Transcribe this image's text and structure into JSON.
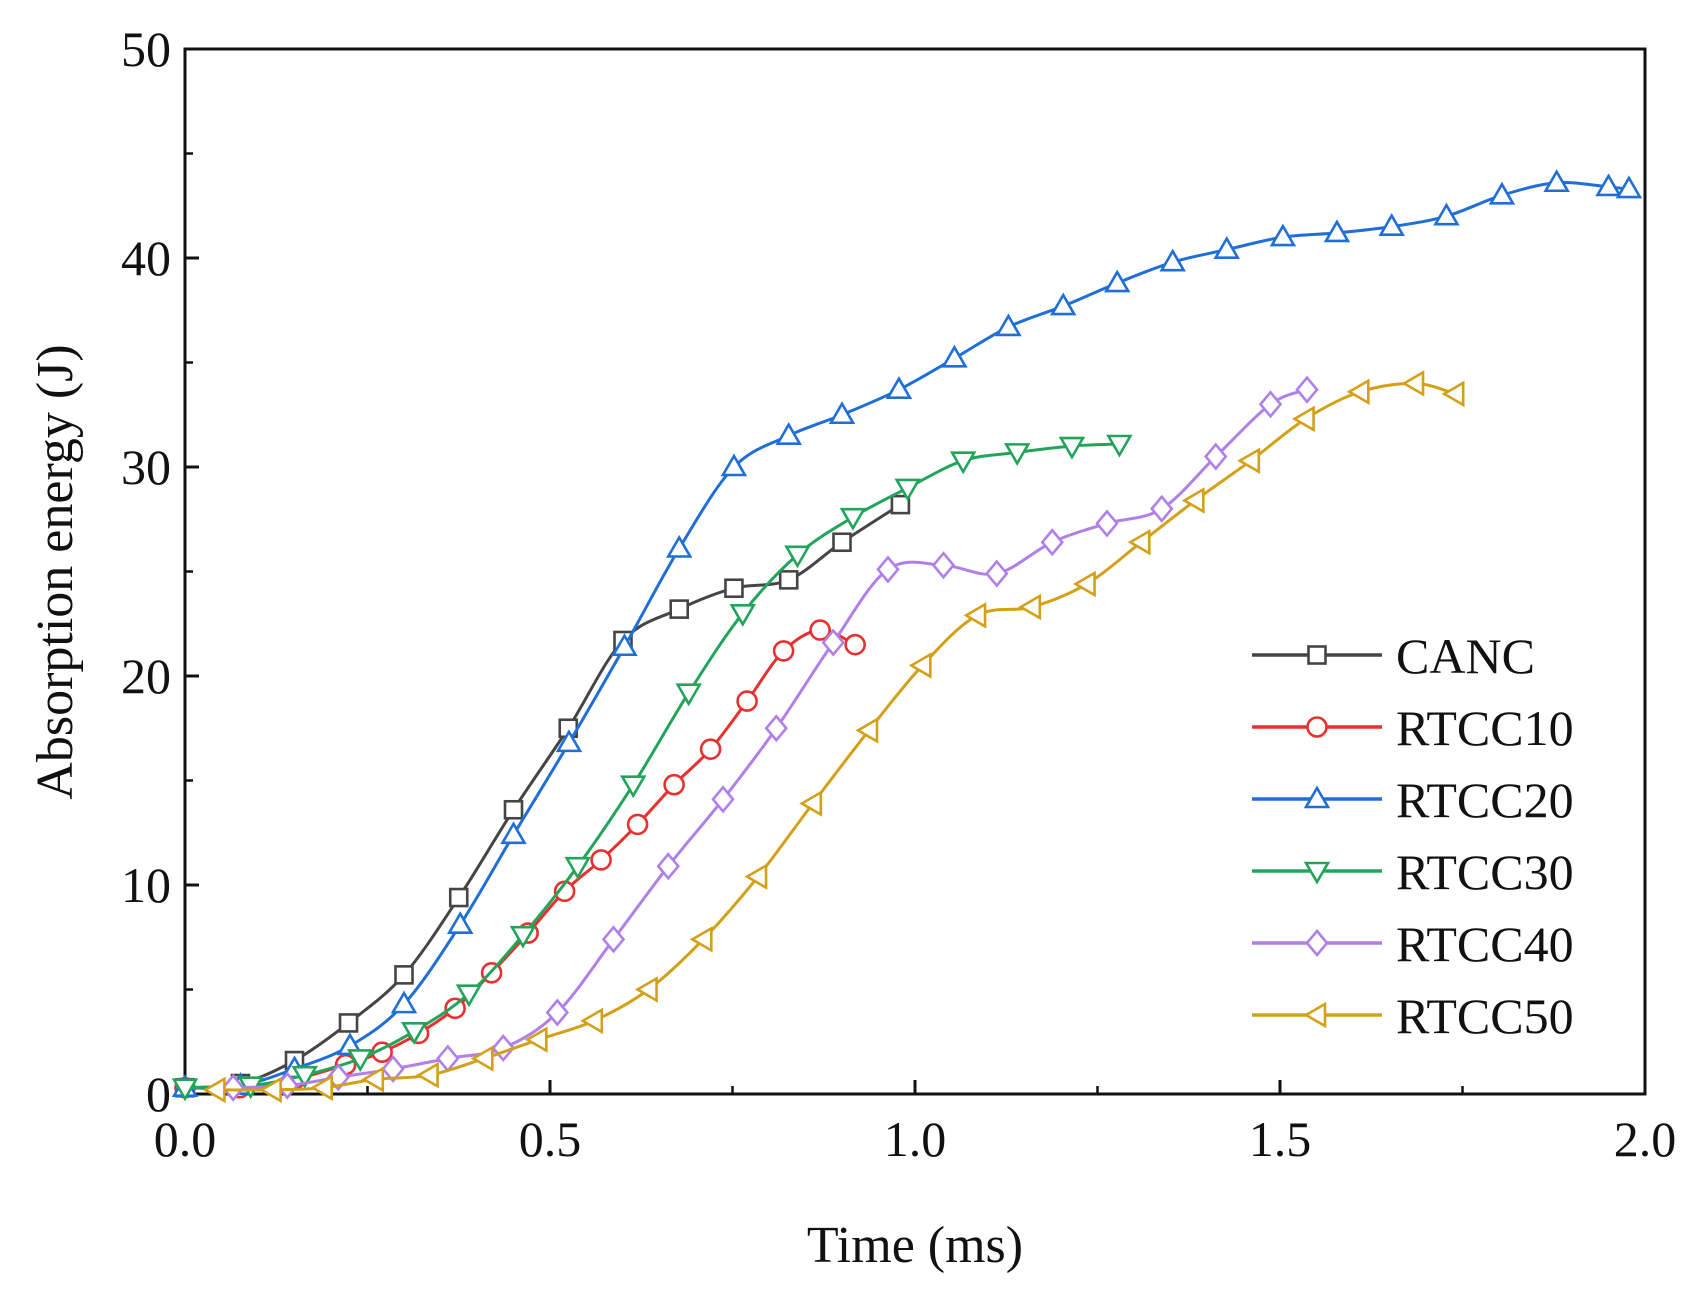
{
  "chart_data": {
    "type": "line",
    "title": "",
    "xlabel": "Time (ms)",
    "ylabel": "Absorption energy (J)",
    "xlim": [
      0,
      2.0
    ],
    "ylim": [
      0,
      50
    ],
    "xticks": [
      "0.0",
      "0.5",
      "1.0",
      "1.5",
      "2.0"
    ],
    "yticks": [
      "0",
      "10",
      "20",
      "30",
      "40",
      "50"
    ],
    "grid": false,
    "legend_position": "bottom-right",
    "series": [
      {
        "name": "CANC",
        "color": "#454545",
        "marker": "square",
        "x": [
          0.0,
          0.076,
          0.15,
          0.224,
          0.3,
          0.375,
          0.45,
          0.525,
          0.6,
          0.677,
          0.752,
          0.827,
          0.9,
          0.98
        ],
        "y": [
          0.3,
          0.5,
          1.6,
          3.4,
          5.7,
          9.4,
          13.6,
          17.5,
          21.7,
          23.2,
          24.2,
          24.6,
          26.4,
          28.2
        ]
      },
      {
        "name": "RTCC10",
        "color": "#e8312e",
        "marker": "circle",
        "x": [
          0.0,
          0.075,
          0.15,
          0.22,
          0.27,
          0.32,
          0.37,
          0.42,
          0.47,
          0.52,
          0.57,
          0.62,
          0.67,
          0.72,
          0.77,
          0.82,
          0.87,
          0.918
        ],
        "y": [
          0.3,
          0.3,
          0.7,
          1.4,
          2.0,
          2.9,
          4.1,
          5.8,
          7.7,
          9.7,
          11.2,
          12.9,
          14.8,
          16.5,
          18.8,
          21.2,
          22.2,
          21.5
        ]
      },
      {
        "name": "RTCC20",
        "color": "#1f6fd6",
        "marker": "triangle-up",
        "x": [
          0.0,
          0.076,
          0.15,
          0.226,
          0.3,
          0.377,
          0.45,
          0.526,
          0.602,
          0.677,
          0.752,
          0.827,
          0.9,
          0.978,
          1.054,
          1.128,
          1.203,
          1.277,
          1.353,
          1.427,
          1.504,
          1.578,
          1.653,
          1.728,
          1.804,
          1.879,
          1.95,
          1.978
        ],
        "y": [
          0.3,
          0.4,
          1.2,
          2.3,
          4.3,
          8.1,
          12.4,
          16.8,
          21.4,
          26.1,
          30.0,
          31.5,
          32.5,
          33.7,
          35.2,
          36.7,
          37.7,
          38.8,
          39.8,
          40.4,
          41.0,
          41.2,
          41.5,
          42.0,
          43.0,
          43.6,
          43.4,
          43.3
        ]
      },
      {
        "name": "RTCC30",
        "color": "#22a55a",
        "marker": "triangle-down",
        "x": [
          0.0,
          0.09,
          0.164,
          0.24,
          0.314,
          0.389,
          0.463,
          0.538,
          0.614,
          0.69,
          0.764,
          0.839,
          0.915,
          0.99,
          1.066,
          1.14,
          1.215,
          1.28
        ],
        "y": [
          0.3,
          0.4,
          0.9,
          1.7,
          3.0,
          4.8,
          7.6,
          10.9,
          14.8,
          19.2,
          23.0,
          25.8,
          27.6,
          29.0,
          30.3,
          30.7,
          31.0,
          31.1
        ]
      },
      {
        "name": "RTCC40",
        "color": "#b07fe8",
        "marker": "diamond",
        "x": [
          0.066,
          0.14,
          0.21,
          0.285,
          0.36,
          0.436,
          0.51,
          0.587,
          0.662,
          0.737,
          0.81,
          0.888,
          0.963,
          1.039,
          1.112,
          1.188,
          1.263,
          1.338,
          1.412,
          1.487,
          1.537
        ],
        "y": [
          0.3,
          0.4,
          0.8,
          1.2,
          1.7,
          2.2,
          3.9,
          7.4,
          10.9,
          14.1,
          17.5,
          21.6,
          25.1,
          25.3,
          24.9,
          26.4,
          27.3,
          28.0,
          30.5,
          33.0,
          33.7
        ]
      },
      {
        "name": "RTCC50",
        "color": "#d4a017",
        "marker": "triangle-left",
        "x": [
          0.043,
          0.12,
          0.19,
          0.26,
          0.335,
          0.41,
          0.484,
          0.56,
          0.635,
          0.71,
          0.785,
          0.86,
          0.937,
          1.01,
          1.085,
          1.16,
          1.235,
          1.31,
          1.384,
          1.46,
          1.535,
          1.61,
          1.685,
          1.74
        ],
        "y": [
          0.2,
          0.2,
          0.3,
          0.7,
          0.9,
          1.7,
          2.6,
          3.5,
          5.0,
          7.4,
          10.4,
          13.9,
          17.4,
          20.5,
          22.9,
          23.3,
          24.4,
          26.4,
          28.4,
          30.3,
          32.3,
          33.6,
          34.0,
          33.5
        ]
      }
    ]
  }
}
